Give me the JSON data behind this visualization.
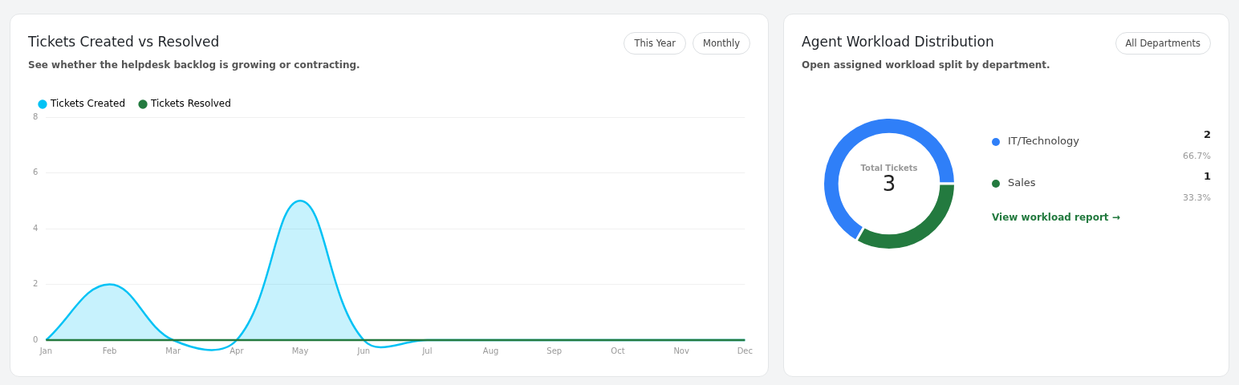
{
  "chart_data": [
    {
      "type": "area",
      "title": "Tickets Created vs Resolved",
      "subtitle": "See whether the helpdesk backlog is growing or contracting.",
      "categories": [
        "Jan",
        "Feb",
        "Mar",
        "Apr",
        "May",
        "Jun",
        "Jul",
        "Aug",
        "Sep",
        "Oct",
        "Nov",
        "Dec"
      ],
      "series": [
        {
          "name": "Tickets Created",
          "color": "#00c2f5",
          "values": [
            0,
            2,
            0,
            0,
            5,
            0,
            0,
            0,
            0,
            0,
            0,
            0
          ]
        },
        {
          "name": "Tickets Resolved",
          "type": "line",
          "color": "#237a3f",
          "values": [
            0,
            0,
            0,
            0,
            0,
            0,
            0,
            0,
            0,
            0,
            0,
            0
          ]
        }
      ],
      "ylim": [
        0,
        8
      ],
      "yticks": [
        0,
        2,
        4,
        6,
        8
      ],
      "grid": "y",
      "legend": "top left",
      "marker": "none",
      "annotations": [
        "This Year",
        "Monthly"
      ]
    },
    {
      "type": "donut",
      "title": "Agent Workload Distribution",
      "subtitle": "Open assigned workload split by department.",
      "categories": [
        "IT/Technology",
        "Sales"
      ],
      "values": [
        2,
        1
      ],
      "colors": [
        "#2f7ff8",
        "#237a3f"
      ],
      "data_labels": true,
      "legend": "right",
      "annotations": [
        "All Departments",
        "Total Tickets",
        "3",
        "66.7%",
        "33.3%",
        "View workload report →"
      ]
    }
  ]
}
